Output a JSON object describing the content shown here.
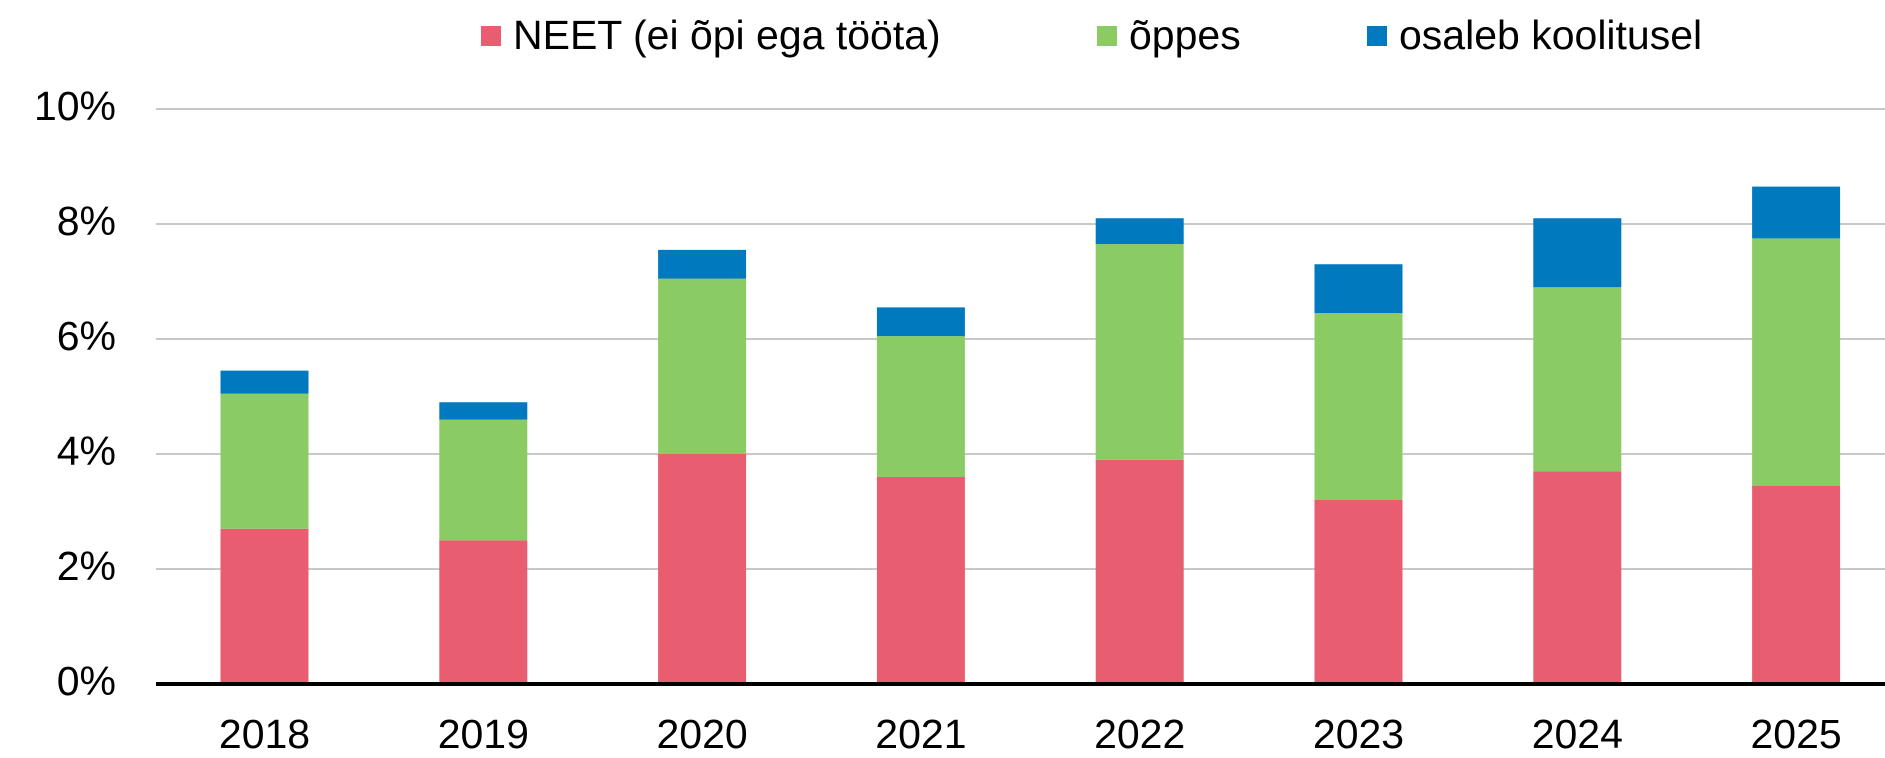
{
  "chart_data": {
    "type": "stacked_bar",
    "categories": [
      "2018",
      "2019",
      "2020",
      "2021",
      "2022",
      "2023",
      "2024",
      "2025"
    ],
    "series": [
      {
        "name": "NEET (ei õpi ega tööta)",
        "color": "#e85d70",
        "values": [
          2.7,
          2.5,
          4.0,
          3.6,
          3.9,
          3.2,
          3.7,
          3.45
        ]
      },
      {
        "name": "õppes",
        "color": "#8bcb63",
        "values": [
          2.35,
          2.1,
          3.05,
          2.45,
          3.75,
          3.25,
          3.2,
          4.3
        ]
      },
      {
        "name": "osaleb koolitusel",
        "color": "#0079bf",
        "values": [
          0.4,
          0.3,
          0.5,
          0.5,
          0.45,
          0.85,
          1.2,
          0.9
        ]
      }
    ],
    "ylim": [
      0,
      10
    ],
    "yticks": [
      {
        "value": 0,
        "label": "0%"
      },
      {
        "value": 2,
        "label": "2%"
      },
      {
        "value": 4,
        "label": "4%"
      },
      {
        "value": 6,
        "label": "6%"
      },
      {
        "value": 8,
        "label": "8%"
      },
      {
        "value": 10,
        "label": "10%"
      }
    ],
    "grid": true,
    "legend": "top"
  }
}
